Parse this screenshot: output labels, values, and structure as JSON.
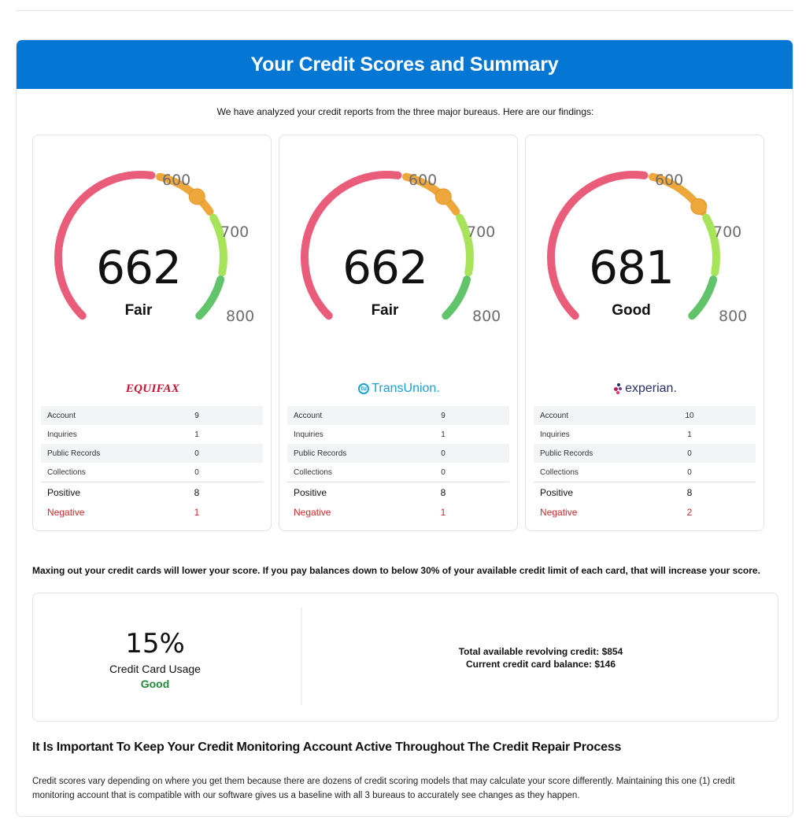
{
  "header": {
    "title": "Your Credit Scores and Summary"
  },
  "intro": "We have analyzed your credit reports from the three major bureaus. Here are our findings:",
  "gauge_ticks": {
    "t600": "600",
    "t700": "700",
    "t800": "800"
  },
  "gauge_range": [
    300,
    850
  ],
  "colors": {
    "header_blue": "#0377d3",
    "poor": "#e95d7a",
    "fair": "#eea73a",
    "good": "#a8e45a",
    "excellent": "#62c46a",
    "negative": "#d32828",
    "good_text": "#1f8a3a"
  },
  "bureaus": [
    {
      "name": "Equifax",
      "logo": "EQUIFAX",
      "score": 662,
      "rating": "Fair",
      "rows": [
        {
          "label": "Account",
          "value": "9"
        },
        {
          "label": "Inquiries",
          "value": "1"
        },
        {
          "label": "Public Records",
          "value": "0"
        },
        {
          "label": "Collections",
          "value": "0"
        }
      ],
      "positive_label": "Positive",
      "positive": "8",
      "negative_label": "Negative",
      "negative": "1"
    },
    {
      "name": "TransUnion",
      "logo": "TransUnion.",
      "logo_mark": "tu",
      "score": 662,
      "rating": "Fair",
      "rows": [
        {
          "label": "Account",
          "value": "9"
        },
        {
          "label": "Inquiries",
          "value": "1"
        },
        {
          "label": "Public Records",
          "value": "0"
        },
        {
          "label": "Collections",
          "value": "0"
        }
      ],
      "positive_label": "Positive",
      "positive": "8",
      "negative_label": "Negative",
      "negative": "1"
    },
    {
      "name": "Experian",
      "logo": "experian.",
      "score": 681,
      "rating": "Good",
      "rows": [
        {
          "label": "Account",
          "value": "10"
        },
        {
          "label": "Inquiries",
          "value": "1"
        },
        {
          "label": "Public Records",
          "value": "0"
        },
        {
          "label": "Collections",
          "value": "0"
        }
      ],
      "positive_label": "Positive",
      "positive": "8",
      "negative_label": "Negative",
      "negative": "2"
    }
  ],
  "utilization": {
    "note": "Maxing out your credit cards will lower your score. If you pay balances down to below 30% of your available credit limit of each card, that will increase your score.",
    "percent": "15%",
    "label": "Credit Card Usage",
    "rating": "Good",
    "total_available": "Total available revolving credit: $854",
    "current_balance": "Current credit card balance: $146"
  },
  "monitoring": {
    "heading": "It Is Important To Keep Your Credit Monitoring Account Active Throughout The Credit Repair Process",
    "body": "Credit scores vary depending on where you get them because there are dozens of credit scoring models that may calculate your score differently. Maintaining this one (1) credit monitoring account that is compatible with our software gives us a baseline with all 3 bureaus to accurately see changes as they happen."
  }
}
